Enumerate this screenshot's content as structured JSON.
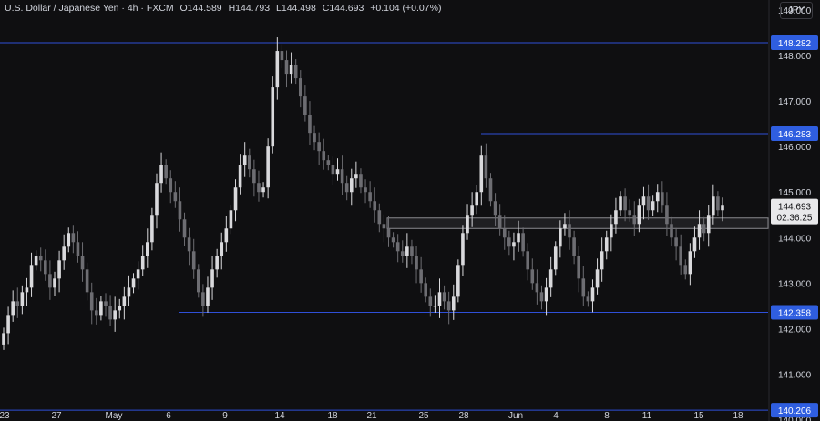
{
  "header": {
    "symbol": "U.S. Dollar / Japanese Yen · 4h · FXCM",
    "open": "O144.589",
    "high": "H144.793",
    "low": "L144.498",
    "close": "C144.693",
    "change": "+0.104 (+0.07%)"
  },
  "currency_button": "JPY",
  "colors": {
    "background": "#0f0f11",
    "candle_up": "#d9d9dc",
    "candle_down": "#6d6d72",
    "level_line": "#2f4fd8",
    "level_label_bg": "#2f5ee0",
    "price_label_bg": "#e8e8ea",
    "zone_border": "#8a8a8f",
    "text": "#d1d4dc"
  },
  "chart_data": {
    "type": "candlestick",
    "y_axis": {
      "ticks": [
        "149.000",
        "148.000",
        "147.000",
        "146.000",
        "145.000",
        "144.000",
        "143.000",
        "142.000",
        "141.000",
        "140.000"
      ],
      "ylim": [
        139.97,
        149.22
      ],
      "side": "right"
    },
    "x_axis": {
      "ticks": [
        "23",
        "27",
        "May",
        "6",
        "9",
        "14",
        "18",
        "21",
        "25",
        "28",
        "Jun",
        "4",
        "8",
        "11",
        "15",
        "18"
      ]
    },
    "horizontal_levels": [
      {
        "price": 148.282,
        "label": "148.282"
      },
      {
        "price": 146.283,
        "label": "146.283"
      },
      {
        "price": 142.358,
        "label": "142.358"
      },
      {
        "price": 140.206,
        "label": "140.206"
      }
    ],
    "zone": {
      "from": 144.2,
      "to": 144.43
    },
    "last_price": {
      "label": "144.693",
      "countdown": "02:36:25"
    },
    "closes": [
      141.9,
      142.3,
      142.6,
      142.5,
      142.8,
      142.9,
      143.4,
      143.6,
      143.5,
      143.2,
      142.9,
      143.1,
      143.5,
      143.8,
      144.1,
      143.9,
      143.6,
      143.3,
      142.8,
      142.4,
      142.3,
      142.6,
      142.5,
      142.2,
      142.4,
      142.5,
      142.7,
      142.9,
      143.1,
      143.3,
      143.6,
      143.9,
      144.5,
      145.2,
      145.6,
      145.3,
      145.0,
      144.8,
      144.4,
      144.0,
      143.7,
      143.3,
      142.8,
      142.5,
      142.9,
      143.3,
      143.6,
      143.9,
      144.2,
      144.6,
      145.1,
      145.6,
      145.8,
      145.5,
      145.2,
      145.0,
      145.1,
      146.0,
      147.3,
      148.1,
      147.9,
      147.6,
      147.8,
      147.5,
      147.1,
      146.7,
      146.3,
      146.1,
      145.9,
      145.7,
      145.6,
      145.4,
      145.5,
      145.2,
      145.0,
      145.3,
      145.4,
      145.1,
      145.0,
      144.8,
      144.6,
      144.3,
      144.2,
      144.0,
      143.9,
      143.7,
      143.6,
      143.8,
      143.6,
      143.3,
      143.0,
      142.7,
      142.5,
      142.5,
      142.8,
      142.6,
      142.4,
      142.7,
      143.4,
      144.1,
      144.5,
      144.7,
      145.0,
      145.8,
      145.3,
      144.8,
      144.5,
      144.2,
      144.0,
      143.8,
      143.9,
      144.1,
      143.7,
      143.3,
      143.0,
      142.8,
      142.6,
      142.9,
      143.3,
      143.8,
      144.2,
      144.3,
      144.0,
      143.6,
      143.1,
      142.7,
      142.6,
      142.9,
      143.3,
      143.7,
      144.0,
      144.3,
      144.6,
      144.9,
      144.6,
      144.5,
      144.3,
      144.7,
      144.9,
      144.6,
      144.8,
      145.0,
      144.7,
      144.3,
      144.0,
      143.8,
      143.4,
      143.2,
      143.7,
      144.0,
      144.3,
      144.1,
      144.5,
      144.9,
      144.6,
      144.7
    ]
  }
}
